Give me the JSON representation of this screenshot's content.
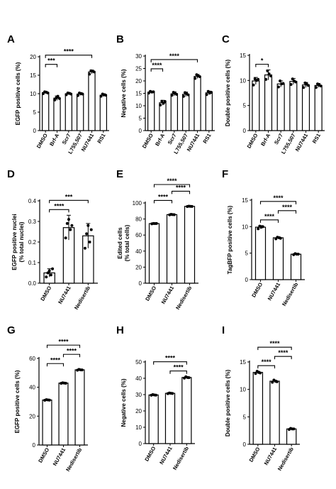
{
  "figure": {
    "background": "#ffffff",
    "ink": "#000000"
  },
  "chart_data": [
    {
      "panel": "A",
      "type": "bar",
      "ylabel": "EGFP positive cells (%)",
      "categories": [
        "DMSO",
        "Brf-A",
        "Scr7",
        "L755,507",
        "NU7441",
        "RS1"
      ],
      "values": [
        10.3,
        8.8,
        10.0,
        9.9,
        15.9,
        9.6
      ],
      "errors": [
        0.3,
        0.6,
        0.3,
        0.4,
        0.5,
        0.4
      ],
      "points": [
        [
          10.0,
          10.5,
          10.4,
          10.2
        ],
        [
          8.3,
          8.9,
          9.3,
          8.7
        ],
        [
          9.7,
          10.2,
          10.1,
          9.9
        ],
        [
          9.5,
          10.2,
          10.0,
          9.9
        ],
        [
          15.3,
          16.2,
          16.1,
          15.9
        ],
        [
          9.3,
          9.9,
          9.7,
          9.6
        ]
      ],
      "ylim": [
        0,
        20
      ],
      "yticks": [
        0,
        5,
        10,
        15,
        20
      ],
      "brackets": [
        {
          "from": 0,
          "to": 1,
          "label": "***"
        },
        {
          "from": 0,
          "to": 4,
          "label": "****"
        }
      ]
    },
    {
      "panel": "B",
      "type": "bar",
      "ylabel": "Negative cells (%)",
      "categories": [
        "DMSO",
        "Brf-A",
        "Scr7",
        "L755,507",
        "NU7441",
        "RS1"
      ],
      "values": [
        15.5,
        11.2,
        14.8,
        14.6,
        21.8,
        15.2
      ],
      "errors": [
        0.4,
        1.0,
        0.8,
        0.9,
        0.8,
        0.7
      ],
      "points": [
        [
          15.1,
          15.8,
          15.5,
          15.6
        ],
        [
          10.3,
          11.8,
          11.0,
          11.7
        ],
        [
          14.2,
          15.4,
          15.0,
          14.6
        ],
        [
          13.8,
          15.3,
          14.9,
          14.4
        ],
        [
          21.0,
          22.5,
          22.0,
          21.7
        ],
        [
          14.5,
          15.8,
          15.1,
          15.4
        ]
      ],
      "ylim": [
        0,
        30
      ],
      "yticks": [
        0,
        5,
        10,
        15,
        20,
        25,
        30
      ],
      "brackets": [
        {
          "from": 0,
          "to": 1,
          "label": "****"
        },
        {
          "from": 0,
          "to": 4,
          "label": "****"
        }
      ]
    },
    {
      "panel": "C",
      "type": "bar",
      "ylabel": "Double positive cells (%)",
      "categories": [
        "DMSO",
        "Brf-A",
        "Scr7",
        "L755,507",
        "NU7441",
        "RS1"
      ],
      "values": [
        9.9,
        11.1,
        9.3,
        9.8,
        9.1,
        9.0
      ],
      "errors": [
        0.7,
        1.0,
        0.6,
        0.6,
        0.5,
        0.4
      ],
      "points": [
        [
          9.1,
          10.3,
          10.0,
          10.2
        ],
        [
          10.2,
          11.9,
          11.3,
          10.9
        ],
        [
          8.7,
          9.9,
          9.3,
          9.4
        ],
        [
          9.2,
          10.3,
          9.9,
          9.7
        ],
        [
          8.6,
          9.5,
          9.3,
          9.0
        ],
        [
          8.6,
          9.3,
          9.1,
          8.9
        ]
      ],
      "ylim": [
        0,
        15
      ],
      "yticks": [
        0,
        5,
        10,
        15
      ],
      "brackets": [
        {
          "from": 0,
          "to": 1,
          "label": "*"
        }
      ]
    },
    {
      "panel": "D",
      "type": "bar",
      "ylabel": "EGFP positive nuclei (% total nuclei)",
      "categories": [
        "DMSO",
        "NU7441",
        "Nedisertib"
      ],
      "values": [
        0.05,
        0.27,
        0.23
      ],
      "errors": [
        0.02,
        0.06,
        0.06
      ],
      "points": [
        [
          0.03,
          0.05,
          0.06,
          0.04,
          0.07
        ],
        [
          0.22,
          0.29,
          0.31,
          0.26,
          0.28
        ],
        [
          0.17,
          0.24,
          0.28,
          0.2,
          0.26
        ]
      ],
      "ylim": [
        0,
        0.4
      ],
      "yticks": [
        0.0,
        0.1,
        0.2,
        0.3,
        0.4
      ],
      "brackets": [
        {
          "from": 0,
          "to": 1,
          "label": "****"
        },
        {
          "from": 0,
          "to": 2,
          "label": "***"
        }
      ]
    },
    {
      "panel": "E",
      "type": "bar",
      "ylabel": "Edited cells (% total cells)",
      "categories": [
        "DMSO",
        "NU7441",
        "Nedisertib"
      ],
      "values": [
        74.3,
        85.5,
        95.8
      ],
      "errors": [
        0.4,
        0.4,
        0.3
      ],
      "points": [
        [
          74.0,
          74.5,
          74.3,
          74.4
        ],
        [
          85.2,
          85.8,
          85.5,
          85.4
        ],
        [
          95.6,
          96.0,
          95.8,
          95.7
        ]
      ],
      "ylim": [
        0,
        100
      ],
      "yticks": [
        0,
        20,
        40,
        60,
        80,
        100
      ],
      "brackets": [
        {
          "from": 0,
          "to": 1,
          "label": "****"
        },
        {
          "from": 1,
          "to": 2,
          "label": "****"
        },
        {
          "from": 0,
          "to": 2,
          "label": "****"
        }
      ]
    },
    {
      "panel": "F",
      "type": "bar",
      "ylabel": "TagBFP positive cells (%)",
      "categories": [
        "DMSO",
        "NU7441",
        "Nedisertib"
      ],
      "values": [
        9.9,
        7.9,
        4.8
      ],
      "errors": [
        0.3,
        0.2,
        0.1
      ],
      "points": [
        [
          9.6,
          10.1,
          9.9,
          10.0
        ],
        [
          7.7,
          8.0,
          7.9,
          7.8
        ],
        [
          4.7,
          4.9,
          4.8,
          4.8
        ]
      ],
      "ylim": [
        0,
        15
      ],
      "yticks": [
        0,
        5,
        10,
        15
      ],
      "brackets": [
        {
          "from": 0,
          "to": 1,
          "label": "****"
        },
        {
          "from": 1,
          "to": 2,
          "label": "****"
        },
        {
          "from": 0,
          "to": 2,
          "label": "****"
        }
      ]
    },
    {
      "panel": "G",
      "type": "bar",
      "ylabel": "EGFP positive cells (%)",
      "categories": [
        "DMSO",
        "NU7441",
        "Nedisertib"
      ],
      "values": [
        31.2,
        42.9,
        52.1
      ],
      "errors": [
        0.3,
        0.3,
        0.4
      ],
      "points": [
        [
          31.0,
          31.4,
          31.2,
          31.1
        ],
        [
          42.7,
          43.1,
          42.9,
          42.8
        ],
        [
          51.8,
          52.4,
          52.1,
          52.0
        ]
      ],
      "ylim": [
        0,
        60
      ],
      "yticks": [
        0,
        20,
        40,
        60
      ],
      "brackets": [
        {
          "from": 0,
          "to": 1,
          "label": "****"
        },
        {
          "from": 1,
          "to": 2,
          "label": "****"
        },
        {
          "from": 0,
          "to": 2,
          "label": "****"
        }
      ]
    },
    {
      "panel": "H",
      "type": "bar",
      "ylabel": "Negative cells (%)",
      "categories": [
        "DMSO",
        "NU7441",
        "Nedisertib"
      ],
      "values": [
        29.8,
        30.8,
        40.5
      ],
      "errors": [
        0.3,
        0.3,
        0.5
      ],
      "points": [
        [
          29.6,
          30.0,
          29.8,
          29.7
        ],
        [
          30.6,
          31.0,
          30.8,
          30.7
        ],
        [
          40.1,
          40.9,
          40.5,
          40.4
        ]
      ],
      "ylim": [
        0,
        50
      ],
      "yticks": [
        0,
        10,
        20,
        30,
        40,
        50
      ],
      "brackets": [
        {
          "from": 1,
          "to": 2,
          "label": "****"
        },
        {
          "from": 0,
          "to": 2,
          "label": "****"
        }
      ]
    },
    {
      "panel": "I",
      "type": "bar",
      "ylabel": "Double positive cells (%)",
      "categories": [
        "DMSO",
        "NU7441",
        "Nedisertib"
      ],
      "values": [
        13.1,
        11.5,
        2.8
      ],
      "errors": [
        0.2,
        0.2,
        0.1
      ],
      "points": [
        [
          12.9,
          13.3,
          13.1,
          13.0
        ],
        [
          11.3,
          11.7,
          11.5,
          11.4
        ],
        [
          2.7,
          2.9,
          2.8,
          2.8
        ]
      ],
      "ylim": [
        0,
        15
      ],
      "yticks": [
        0,
        5,
        10,
        15
      ],
      "brackets": [
        {
          "from": 0,
          "to": 1,
          "label": "****"
        },
        {
          "from": 1,
          "to": 2,
          "label": "****"
        },
        {
          "from": 0,
          "to": 2,
          "label": "****"
        }
      ]
    }
  ]
}
